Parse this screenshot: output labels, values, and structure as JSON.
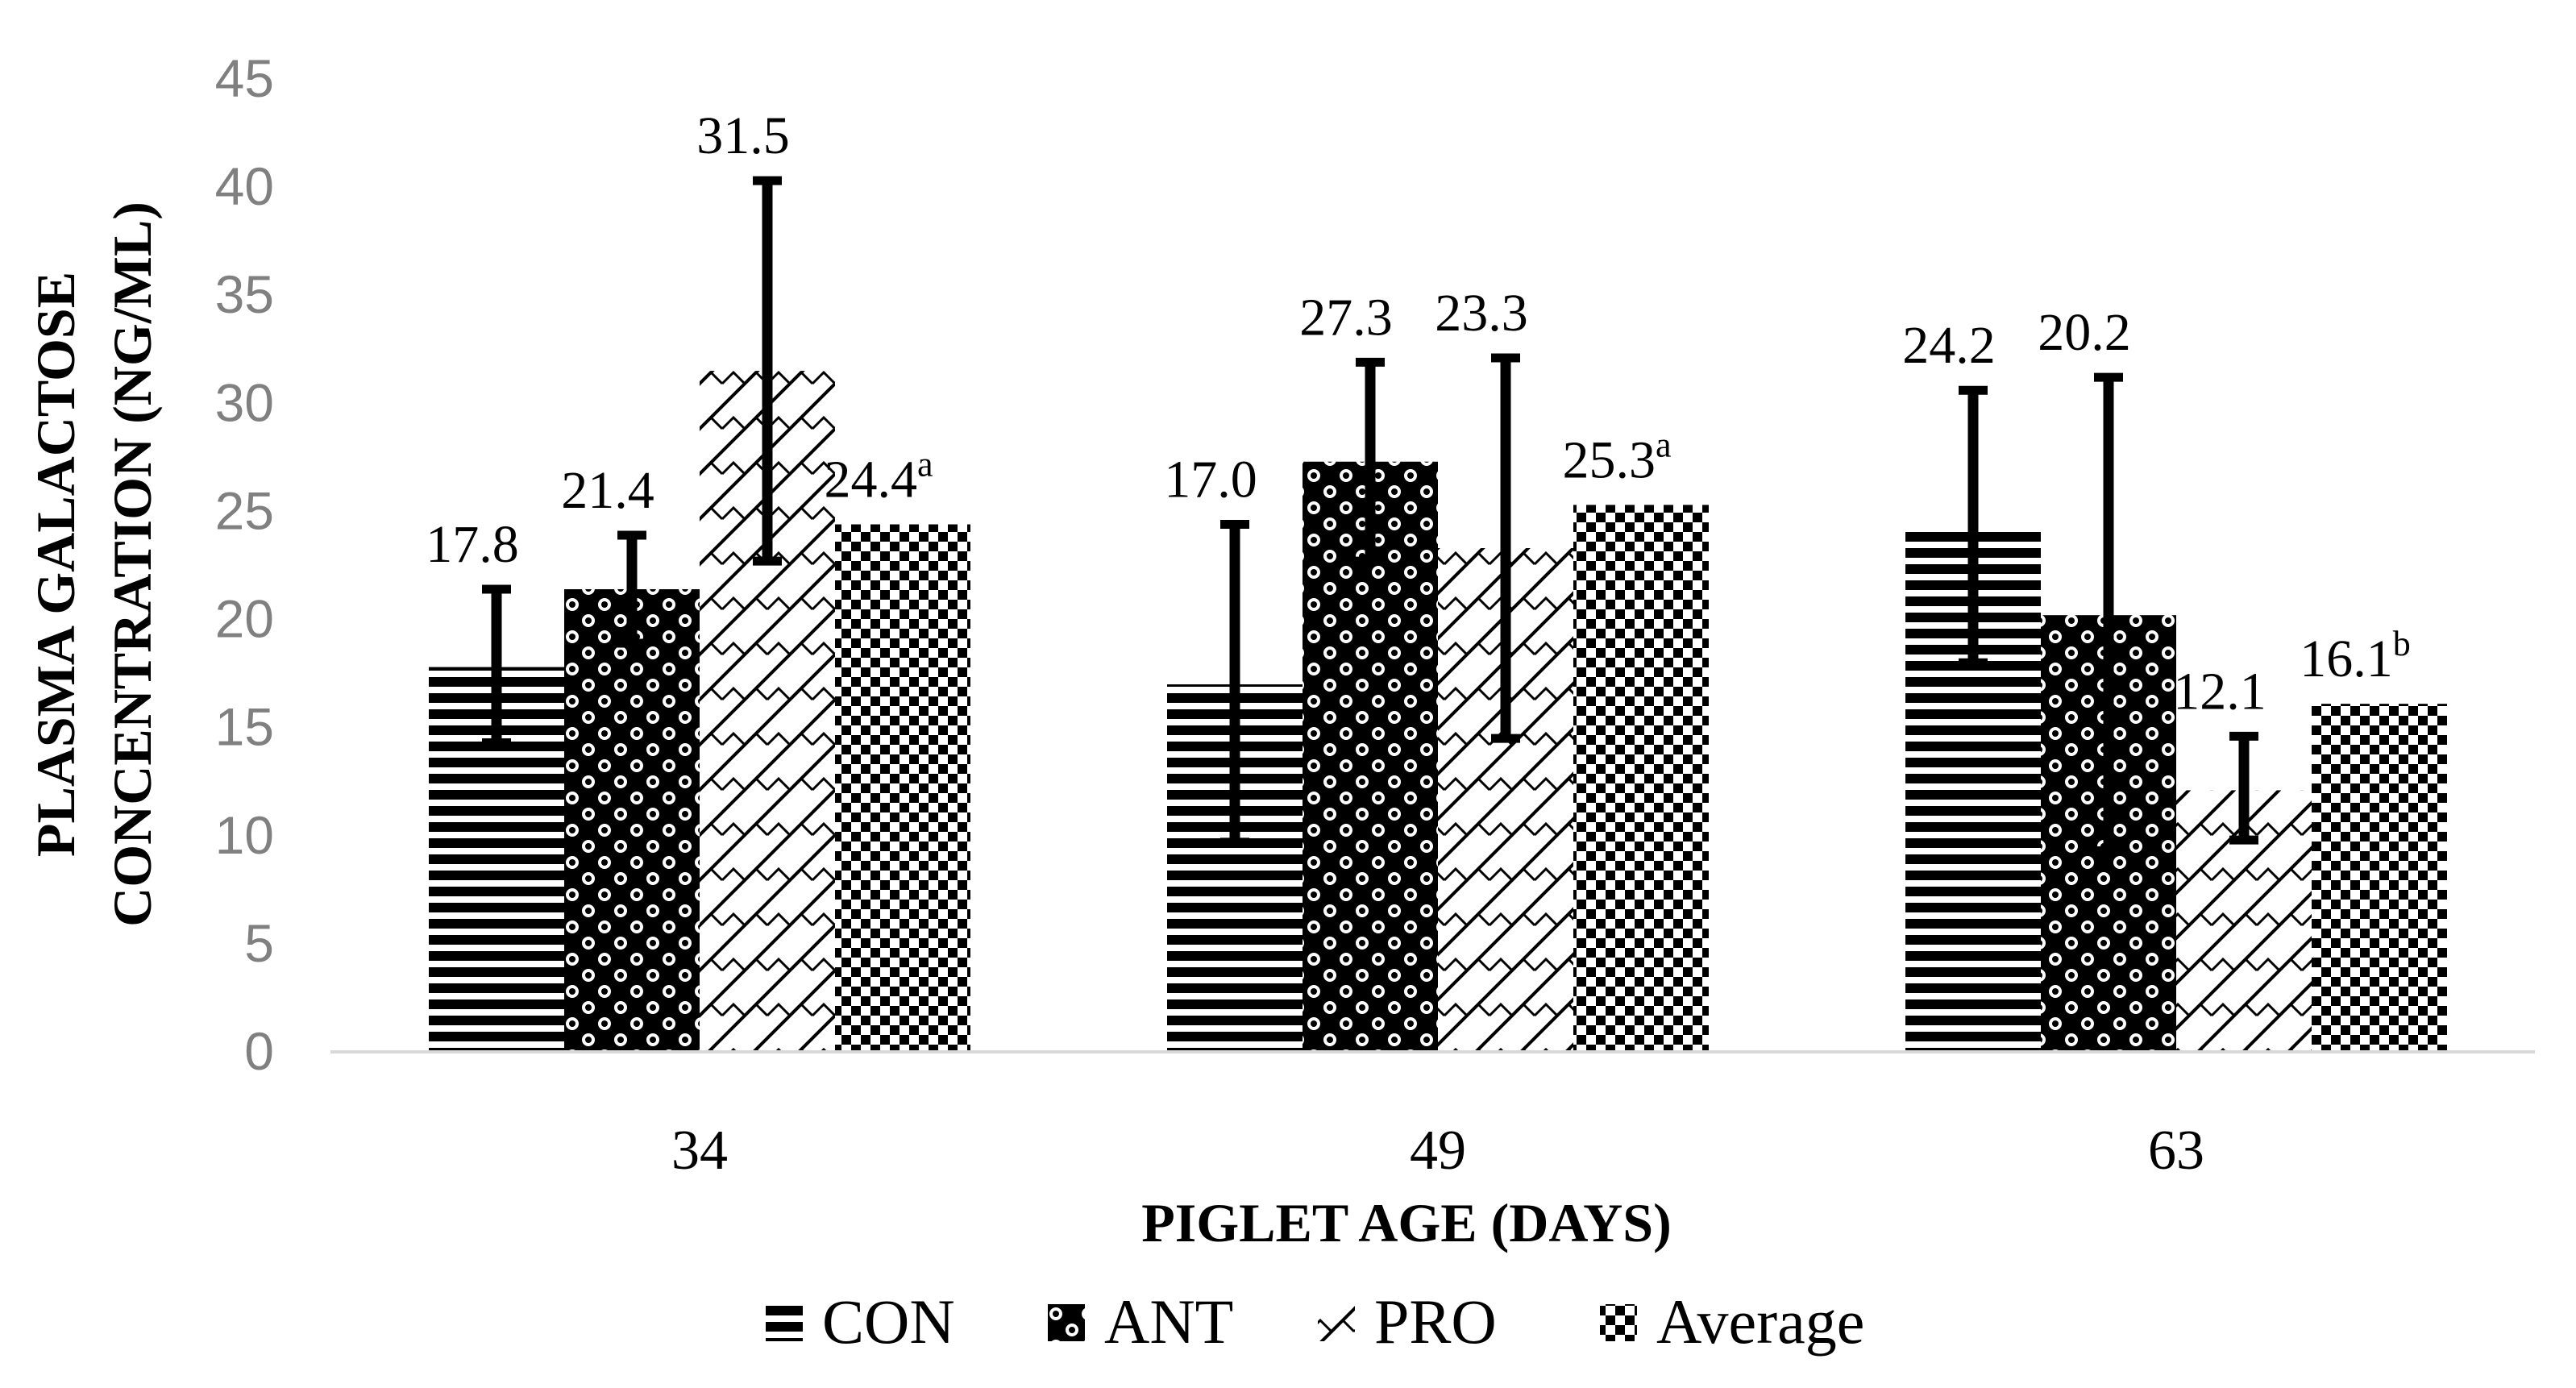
{
  "chart_data": {
    "type": "bar",
    "xlabel": "PIGLET AGE (DAYS)",
    "ylabel_lines": [
      "PLASMA GALACTOSE",
      "CONCENTRATION (NG/ML)"
    ],
    "ylim": [
      0,
      45
    ],
    "yticks": [
      0,
      5,
      10,
      15,
      20,
      25,
      30,
      35,
      40,
      45
    ],
    "grid": false,
    "legend_position": "bottom",
    "categories": [
      "34",
      "49",
      "63"
    ],
    "series": [
      {
        "name": "CON",
        "pattern": "horizontal-stripes",
        "values": [
          17.8,
          17.0,
          24.2
        ],
        "labels": [
          "17.8",
          "17.0",
          "24.2"
        ],
        "superscripts": [
          "",
          "",
          ""
        ],
        "error_low": [
          14.3,
          9.7,
          18.0
        ],
        "error_high": [
          21.4,
          24.4,
          30.6
        ]
      },
      {
        "name": "ANT",
        "pattern": "dots",
        "values": [
          21.4,
          27.3,
          20.2
        ],
        "labels": [
          "21.4",
          "27.3",
          "20.2"
        ],
        "superscripts": [
          "",
          "",
          ""
        ],
        "error_low": [
          18.9,
          22.7,
          9.3
        ],
        "error_high": [
          23.9,
          31.9,
          31.2
        ]
      },
      {
        "name": "PRO",
        "pattern": "diagonal-zigzag",
        "values": [
          31.5,
          23.3,
          12.1
        ],
        "labels": [
          "31.5",
          "23.3",
          "12.1"
        ],
        "superscripts": [
          "",
          "",
          ""
        ],
        "error_low": [
          22.7,
          14.5,
          9.8
        ],
        "error_high": [
          40.3,
          32.1,
          14.6
        ]
      },
      {
        "name": "Average",
        "pattern": "checkerboard",
        "values": [
          24.4,
          25.3,
          16.1
        ],
        "labels": [
          "24.4",
          "25.3",
          "16.1"
        ],
        "superscripts": [
          "a",
          "a",
          "b"
        ],
        "error_low": [
          null,
          null,
          null
        ],
        "error_high": [
          null,
          null,
          null
        ]
      }
    ]
  }
}
